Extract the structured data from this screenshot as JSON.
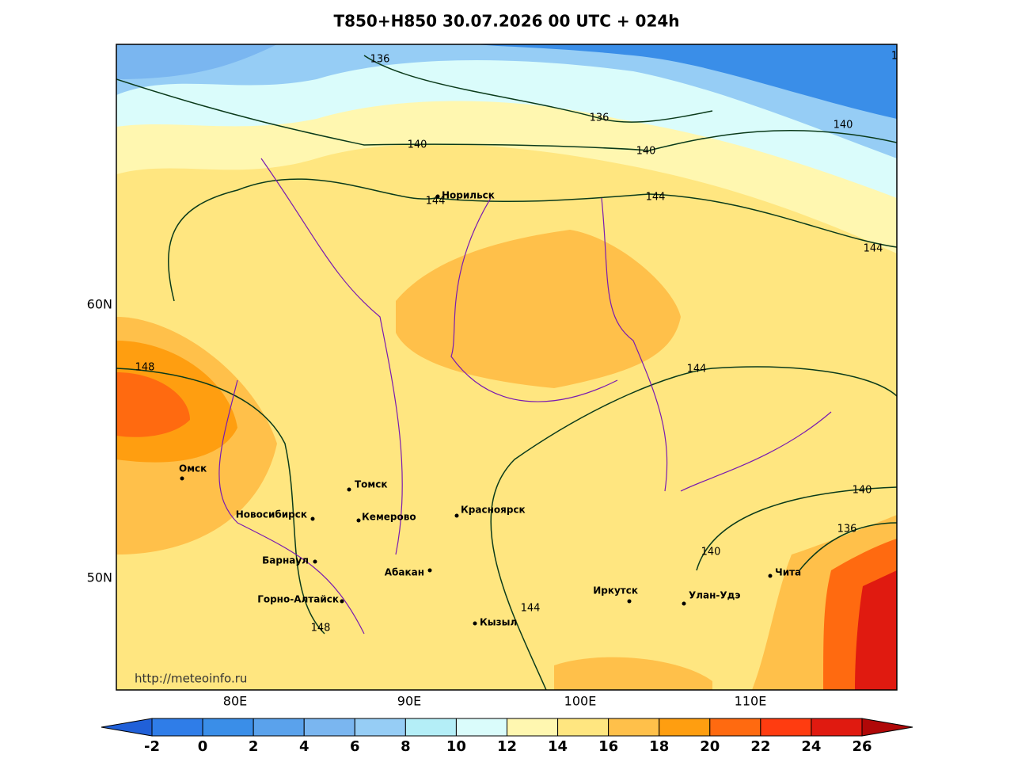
{
  "title": "T850+H850 30.07.2026 00 UTC + 024h",
  "lat_labels": [
    "60N",
    "50N"
  ],
  "lon_labels": [
    "80E",
    "90E",
    "100E",
    "110E"
  ],
  "cities": [
    "Норильск",
    "Омск",
    "Томск",
    "Новосибирск",
    "Кемерово",
    "Красноярск",
    "Барнаул",
    "Абакан",
    "Горно-Алтайск",
    "Иркутск",
    "Улан-Удэ",
    "Чита",
    "Кызыл"
  ],
  "contours": [
    "136",
    "136",
    "140",
    "140",
    "140",
    "144",
    "144",
    "144",
    "144",
    "148",
    "148",
    "140",
    "136",
    "140",
    "144",
    "1"
  ],
  "url": "http://meteoinfo.ru",
  "colorbar": {
    "ticks": [
      -2,
      0,
      2,
      4,
      6,
      8,
      10,
      12,
      14,
      16,
      18,
      20,
      22,
      24,
      26
    ],
    "colors": [
      "#2060d8",
      "#2f7de8",
      "#3a8ee8",
      "#5aa2ec",
      "#7ab6f0",
      "#96cdf5",
      "#b4eef7",
      "#dafcfb",
      "#fff7b0",
      "#ffe680",
      "#ffc04a",
      "#ff9e10",
      "#ff6a10",
      "#ff3c10",
      "#e01a10",
      "#b00808"
    ]
  }
}
